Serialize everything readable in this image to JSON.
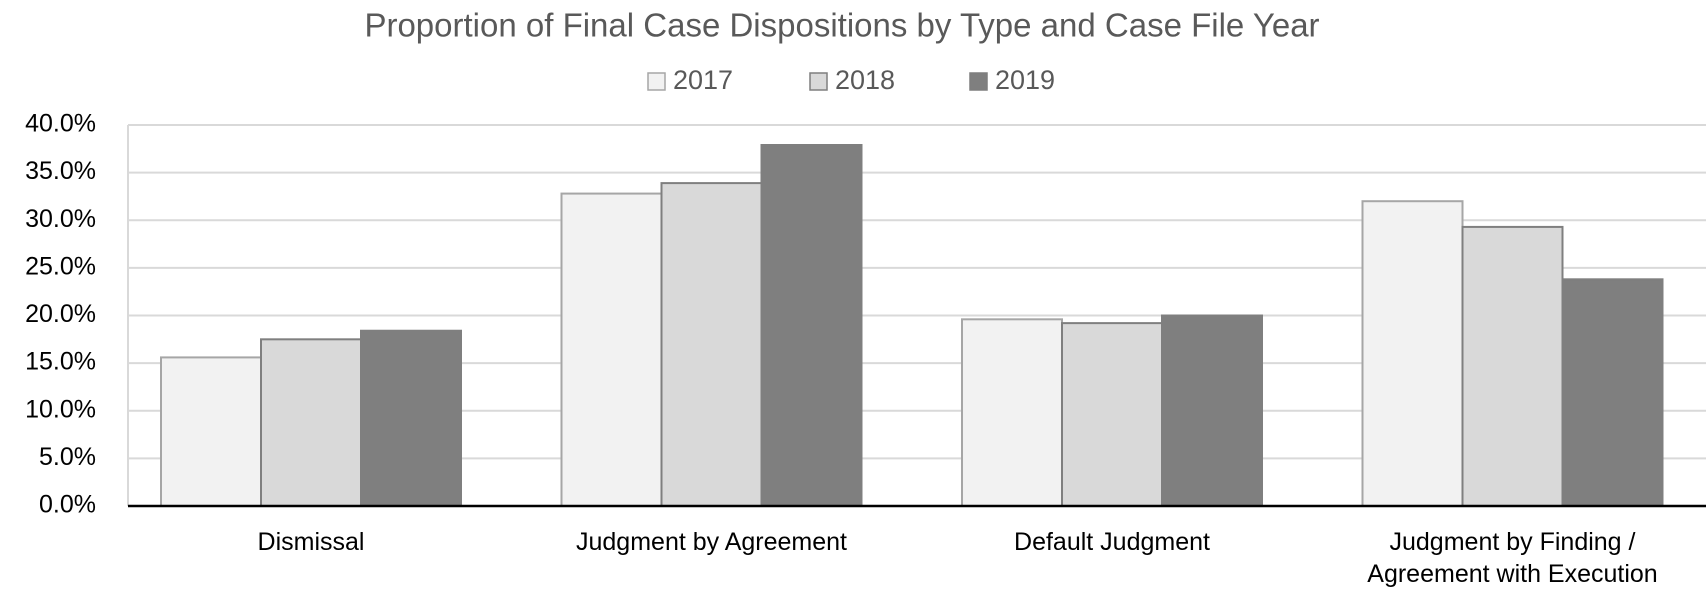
{
  "chart_data": {
    "type": "bar",
    "title": "Proportion of Final Case Dispositions by Type and Case File Year",
    "categories": [
      "Dismissal",
      "Judgment by Agreement",
      "Default Judgment",
      "Judgment by Finding / Agreement with Execution"
    ],
    "series": [
      {
        "name": "2017",
        "color": "#f2f2f2",
        "stroke": "#a6a6a6",
        "values": [
          15.6,
          32.8,
          19.6,
          32.0
        ]
      },
      {
        "name": "2018",
        "color": "#d9d9d9",
        "stroke": "#7f7f7f",
        "values": [
          17.5,
          33.9,
          19.2,
          29.3
        ]
      },
      {
        "name": "2019",
        "color": "#7f7f7f",
        "stroke": "#7f7f7f",
        "values": [
          18.4,
          37.9,
          20.0,
          23.8
        ]
      }
    ],
    "ylim": [
      0,
      40
    ],
    "yticks": [
      {
        "value": 0,
        "label": "0.0%"
      },
      {
        "value": 5,
        "label": "5.0%"
      },
      {
        "value": 10,
        "label": "10.0%"
      },
      {
        "value": 15,
        "label": "15.0%"
      },
      {
        "value": 20,
        "label": "20.0%"
      },
      {
        "value": 25,
        "label": "25.0%"
      },
      {
        "value": 30,
        "label": "30.0%"
      },
      {
        "value": 35,
        "label": "35.0%"
      },
      {
        "value": 40,
        "label": "40.0%"
      }
    ],
    "grid": true,
    "legend": "top"
  }
}
